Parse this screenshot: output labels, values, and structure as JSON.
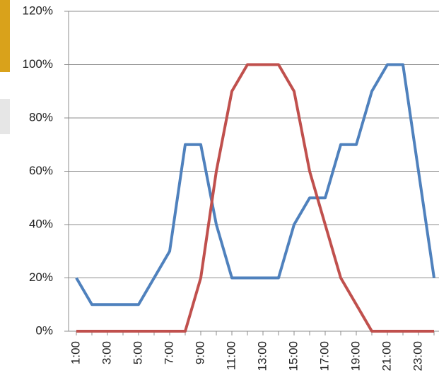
{
  "chart_data": {
    "type": "line",
    "categories": [
      "1:00",
      null,
      "3:00",
      null,
      "5:00",
      null,
      "7:00",
      null,
      "9:00",
      null,
      "11:00",
      null,
      "13:00",
      null,
      "15:00",
      null,
      "17:00",
      null,
      "19:00",
      null,
      "21:00",
      null,
      "23:00",
      null
    ],
    "series": [
      {
        "color": "#4f81bd",
        "values": [
          20,
          10,
          10,
          10,
          10,
          20,
          30,
          70,
          70,
          40,
          20,
          20,
          20,
          20,
          40,
          50,
          50,
          70,
          70,
          90,
          100,
          100,
          60,
          20
        ]
      },
      {
        "color": "#c0504d",
        "values": [
          0,
          0,
          0,
          0,
          0,
          0,
          0,
          0,
          20,
          60,
          90,
          100,
          100,
          100,
          90,
          60,
          40,
          20,
          10,
          0,
          0,
          0,
          0,
          0
        ]
      }
    ],
    "ylim": [
      0,
      120
    ],
    "yticks": [
      {
        "value": 0,
        "label": "0%"
      },
      {
        "value": 20,
        "label": "20%"
      },
      {
        "value": 40,
        "label": "40%"
      },
      {
        "value": 60,
        "label": "60%"
      },
      {
        "value": 80,
        "label": "80%"
      },
      {
        "value": 100,
        "label": "100%"
      },
      {
        "value": 120,
        "label": "120%"
      }
    ],
    "grid": true
  }
}
